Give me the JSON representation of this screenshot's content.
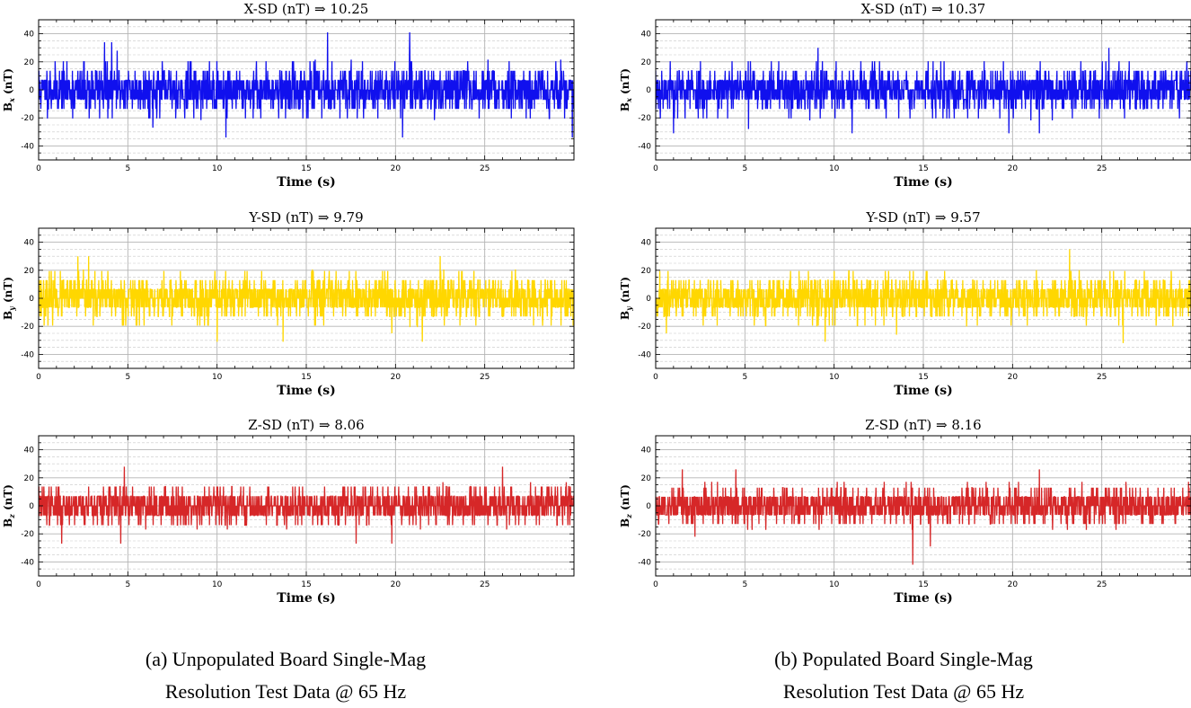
{
  "panels": [
    {
      "id": "a",
      "caption_line1": "(a) Unpopulated Board Single-Mag",
      "caption_line2": "Resolution Test Data @ 65 Hz"
    },
    {
      "id": "b",
      "caption_line1": "(b) Populated Board Single-Mag",
      "caption_line2": "Resolution Test Data @ 65 Hz"
    }
  ],
  "colors": {
    "x": "#1010ee",
    "y": "#ffd700",
    "z": "#d62728"
  },
  "chart_data": [
    {
      "type": "line",
      "panel": "a",
      "axis": "x",
      "title": "X-SD (nT) ⇒ 10.25",
      "xlabel": "Time (s)",
      "ylabel_main": "B",
      "ylabel_sub": "x",
      "ylabel_unit": " (nT)",
      "xlim": [
        0,
        30
      ],
      "ylim": [
        -50,
        50
      ],
      "xticks": [
        0,
        5,
        10,
        15,
        20,
        25
      ],
      "yticks": [
        -40,
        -20,
        0,
        20,
        40
      ],
      "grid": true,
      "sd": 10.25,
      "levels_step": 6.8,
      "n": 1950,
      "seed": 11,
      "peaks": [
        [
          3.7,
          34
        ],
        [
          4.1,
          34
        ],
        [
          16.2,
          41
        ],
        [
          20.8,
          41
        ],
        [
          10.5,
          -34
        ],
        [
          20.4,
          -34
        ],
        [
          29.9,
          -34
        ],
        [
          6.4,
          -27
        ],
        [
          4.4,
          28
        ]
      ]
    },
    {
      "type": "line",
      "panel": "a",
      "axis": "y",
      "title": "Y-SD (nT) ⇒ 9.79",
      "xlabel": "Time (s)",
      "ylabel_main": "B",
      "ylabel_sub": "y",
      "ylabel_unit": " (nT)",
      "xlim": [
        0,
        30
      ],
      "ylim": [
        -50,
        50
      ],
      "xticks": [
        0,
        5,
        10,
        15,
        20,
        25
      ],
      "yticks": [
        -40,
        -20,
        0,
        20,
        40
      ],
      "grid": true,
      "sd": 9.79,
      "levels_step": 6.5,
      "n": 1950,
      "seed": 23,
      "peaks": [
        [
          2.2,
          30
        ],
        [
          2.8,
          30
        ],
        [
          22.5,
          30
        ],
        [
          10,
          -31
        ],
        [
          13.7,
          -31
        ],
        [
          21.5,
          -31
        ],
        [
          19.8,
          -25
        ]
      ]
    },
    {
      "type": "line",
      "panel": "a",
      "axis": "z",
      "title": "Z-SD (nT) ⇒ 8.06",
      "xlabel": "Time (s)",
      "ylabel_main": "B",
      "ylabel_sub": "z",
      "ylabel_unit": " (nT)",
      "xlim": [
        0,
        30
      ],
      "ylim": [
        -50,
        50
      ],
      "xticks": [
        0,
        5,
        10,
        15,
        20,
        25
      ],
      "yticks": [
        -40,
        -20,
        0,
        20,
        40
      ],
      "grid": true,
      "sd": 8.06,
      "levels_step": 6.9,
      "n": 1950,
      "seed": 37,
      "peaks": [
        [
          4.8,
          28
        ],
        [
          26,
          28
        ],
        [
          1.3,
          -27
        ],
        [
          4.6,
          -27
        ],
        [
          17.8,
          -27
        ],
        [
          19.8,
          -27
        ]
      ]
    },
    {
      "type": "line",
      "panel": "b",
      "axis": "x",
      "title": "X-SD (nT) ⇒ 10.37",
      "xlabel": "Time (s)",
      "ylabel_main": "B",
      "ylabel_sub": "x",
      "ylabel_unit": " (nT)",
      "xlim": [
        0,
        30
      ],
      "ylim": [
        -50,
        50
      ],
      "xticks": [
        0,
        5,
        10,
        15,
        20,
        25
      ],
      "yticks": [
        -40,
        -20,
        0,
        20,
        40
      ],
      "grid": true,
      "sd": 10.37,
      "levels_step": 6.8,
      "n": 1950,
      "seed": 53,
      "peaks": [
        [
          9.1,
          30
        ],
        [
          25.4,
          30
        ],
        [
          1,
          -31
        ],
        [
          11,
          -31
        ],
        [
          19.8,
          -31
        ],
        [
          21.5,
          -31
        ],
        [
          5.2,
          -28
        ]
      ]
    },
    {
      "type": "line",
      "panel": "b",
      "axis": "y",
      "title": "Y-SD (nT) ⇒ 9.57",
      "xlabel": "Time (s)",
      "ylabel_main": "B",
      "ylabel_sub": "y",
      "ylabel_unit": " (nT)",
      "xlim": [
        0,
        30
      ],
      "ylim": [
        -50,
        50
      ],
      "xticks": [
        0,
        5,
        10,
        15,
        20,
        25
      ],
      "yticks": [
        -40,
        -20,
        0,
        20,
        40
      ],
      "grid": true,
      "sd": 9.57,
      "levels_step": 6.5,
      "n": 1950,
      "seed": 71,
      "peaks": [
        [
          23.2,
          35
        ],
        [
          0.6,
          -25
        ],
        [
          9.5,
          -31
        ],
        [
          26.2,
          -32
        ],
        [
          13.5,
          -26
        ]
      ]
    },
    {
      "type": "line",
      "panel": "b",
      "axis": "z",
      "title": "Z-SD (nT) ⇒ 8.16",
      "xlabel": "Time (s)",
      "ylabel_main": "B",
      "ylabel_sub": "z",
      "ylabel_unit": " (nT)",
      "xlim": [
        0,
        30
      ],
      "ylim": [
        -50,
        50
      ],
      "xticks": [
        0,
        5,
        10,
        15,
        20,
        25
      ],
      "yticks": [
        -40,
        -20,
        0,
        20,
        40
      ],
      "grid": true,
      "sd": 8.16,
      "levels_step": 6.5,
      "n": 1950,
      "seed": 89,
      "peaks": [
        [
          1.5,
          26
        ],
        [
          4.5,
          26
        ],
        [
          21.5,
          26
        ],
        [
          14.4,
          -42
        ],
        [
          15.4,
          -29
        ],
        [
          2.2,
          -22
        ]
      ]
    }
  ]
}
